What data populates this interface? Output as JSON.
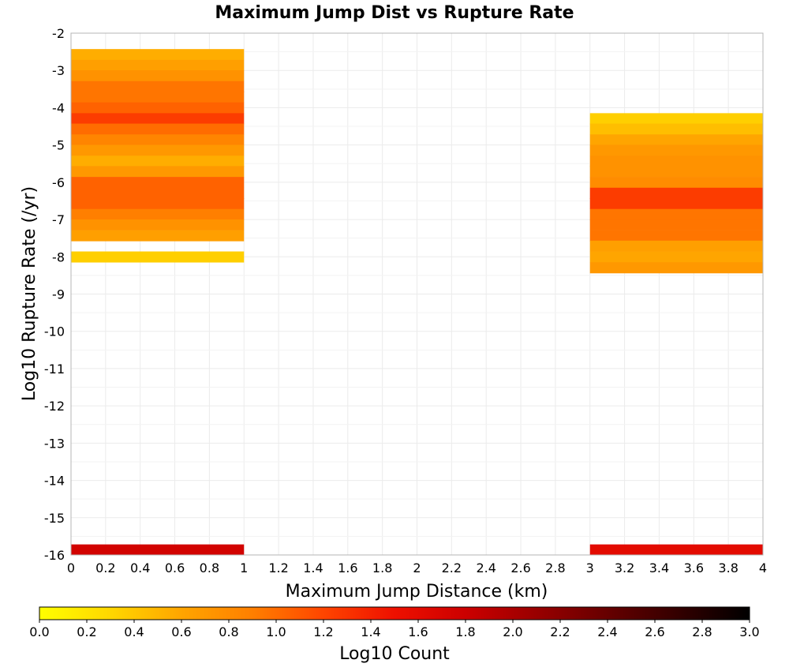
{
  "chart_data": {
    "type": "heatmap",
    "title": "Maximum Jump Dist vs Rupture Rate",
    "xlabel": "Maximum Jump Distance (km)",
    "ylabel": "Log10 Rupture Rate (/yr)",
    "xlim": [
      0,
      4
    ],
    "ylim": [
      -16,
      -2
    ],
    "x_ticks": [
      "0",
      "0.2",
      "0.4",
      "0.6",
      "0.8",
      "1",
      "1.2",
      "1.4",
      "1.6",
      "1.8",
      "2",
      "2.2",
      "2.4",
      "2.6",
      "2.8",
      "3",
      "3.2",
      "3.4",
      "3.6",
      "3.8",
      "4"
    ],
    "y_ticks": [
      "-2",
      "-3",
      "-4",
      "-5",
      "-6",
      "-7",
      "-8",
      "-9",
      "-10",
      "-11",
      "-12",
      "-13",
      "-14",
      "-15",
      "-16"
    ],
    "grid": true,
    "cell_height": 0.286,
    "colorbar": {
      "label": "Log10 Count",
      "min": 0,
      "max": 3,
      "ticks": [
        "0.0",
        "0.2",
        "0.4",
        "0.6",
        "0.8",
        "1.0",
        "1.2",
        "1.4",
        "1.6",
        "1.8",
        "2.0",
        "2.2",
        "2.4",
        "2.6",
        "2.8",
        "3.0"
      ],
      "stops": [
        "#ffff00",
        "#ffd700",
        "#ffa500",
        "#ff7f00",
        "#ff4500",
        "#ee1000",
        "#cc0000",
        "#990000",
        "#660000",
        "#330000",
        "#000000"
      ]
    },
    "cells": [
      {
        "x0": 0,
        "x1": 1,
        "y": -2.57,
        "value": 0.55
      },
      {
        "x0": 0,
        "x1": 1,
        "y": -2.86,
        "value": 0.65
      },
      {
        "x0": 0,
        "x1": 1,
        "y": -3.14,
        "value": 0.75
      },
      {
        "x0": 0,
        "x1": 1,
        "y": -3.43,
        "value": 0.95
      },
      {
        "x0": 0,
        "x1": 1,
        "y": -3.71,
        "value": 0.95
      },
      {
        "x0": 0,
        "x1": 1,
        "y": -4.0,
        "value": 1.05
      },
      {
        "x0": 0,
        "x1": 1,
        "y": -4.29,
        "value": 1.25
      },
      {
        "x0": 0,
        "x1": 1,
        "y": -4.57,
        "value": 1.0
      },
      {
        "x0": 0,
        "x1": 1,
        "y": -4.86,
        "value": 0.85
      },
      {
        "x0": 0,
        "x1": 1,
        "y": -5.14,
        "value": 0.7
      },
      {
        "x0": 0,
        "x1": 1,
        "y": -5.43,
        "value": 0.55
      },
      {
        "x0": 0,
        "x1": 1,
        "y": -5.71,
        "value": 0.7
      },
      {
        "x0": 0,
        "x1": 1,
        "y": -6.0,
        "value": 1.05
      },
      {
        "x0": 0,
        "x1": 1,
        "y": -6.29,
        "value": 1.05
      },
      {
        "x0": 0,
        "x1": 1,
        "y": -6.57,
        "value": 1.05
      },
      {
        "x0": 0,
        "x1": 1,
        "y": -6.86,
        "value": 0.9
      },
      {
        "x0": 0,
        "x1": 1,
        "y": -7.14,
        "value": 0.75
      },
      {
        "x0": 0,
        "x1": 1,
        "y": -7.43,
        "value": 0.65
      },
      {
        "x0": 0,
        "x1": 1,
        "y": -8.0,
        "value": 0.35
      },
      {
        "x0": 0,
        "x1": 1,
        "y": -15.86,
        "value": 1.75
      },
      {
        "x0": 3,
        "x1": 4,
        "y": -4.29,
        "value": 0.35
      },
      {
        "x0": 3,
        "x1": 4,
        "y": -4.57,
        "value": 0.45
      },
      {
        "x0": 3,
        "x1": 4,
        "y": -4.86,
        "value": 0.6
      },
      {
        "x0": 3,
        "x1": 4,
        "y": -5.14,
        "value": 0.7
      },
      {
        "x0": 3,
        "x1": 4,
        "y": -5.43,
        "value": 0.75
      },
      {
        "x0": 3,
        "x1": 4,
        "y": -5.71,
        "value": 0.75
      },
      {
        "x0": 3,
        "x1": 4,
        "y": -6.0,
        "value": 0.8
      },
      {
        "x0": 3,
        "x1": 4,
        "y": -6.29,
        "value": 1.25
      },
      {
        "x0": 3,
        "x1": 4,
        "y": -6.57,
        "value": 1.25
      },
      {
        "x0": 3,
        "x1": 4,
        "y": -6.86,
        "value": 0.95
      },
      {
        "x0": 3,
        "x1": 4,
        "y": -7.14,
        "value": 0.95
      },
      {
        "x0": 3,
        "x1": 4,
        "y": -7.43,
        "value": 0.95
      },
      {
        "x0": 3,
        "x1": 4,
        "y": -7.71,
        "value": 0.65
      },
      {
        "x0": 3,
        "x1": 4,
        "y": -8.0,
        "value": 0.6
      },
      {
        "x0": 3,
        "x1": 4,
        "y": -8.29,
        "value": 0.7
      },
      {
        "x0": 3,
        "x1": 4,
        "y": -15.86,
        "value": 1.6
      }
    ]
  }
}
